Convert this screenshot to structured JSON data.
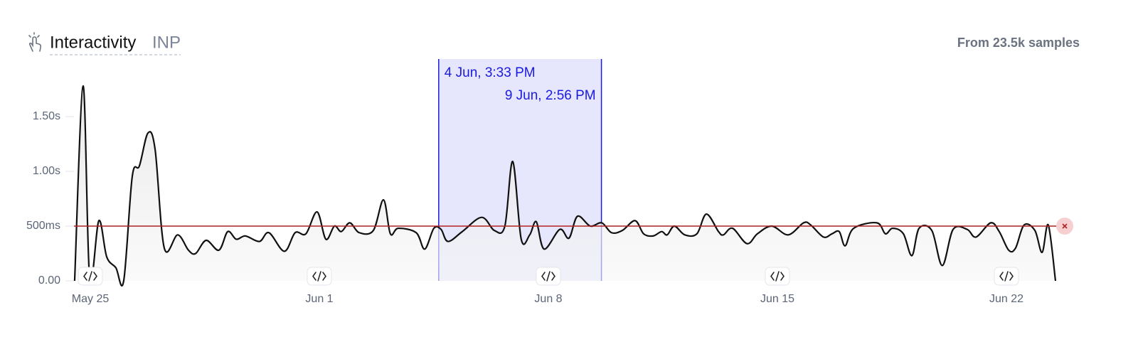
{
  "chart_data": {
    "type": "line",
    "title": "Interactivity",
    "metric": "INP",
    "samples_label": "From 23.5k samples",
    "x": [
      -0.48,
      -0.22,
      -0.02,
      0.26,
      0.5,
      0.78,
      1.02,
      1.28,
      1.5,
      1.76,
      1.98,
      2.26,
      2.67,
      3.0,
      3.22,
      3.54,
      3.93,
      4.2,
      4.46,
      4.74,
      5.17,
      5.46,
      5.93,
      6.26,
      6.59,
      6.93,
      7.2,
      7.46,
      7.67,
      7.93,
      8.22,
      8.65,
      8.96,
      9.17,
      9.41,
      9.96,
      10.22,
      10.5,
      10.72,
      10.93,
      11.37,
      11.96,
      12.35,
      12.67,
      12.91,
      13.17,
      13.43,
      13.63,
      13.87,
      14.35,
      14.63,
      14.89,
      15.28,
      15.63,
      15.93,
      16.26,
      16.65,
      16.91,
      17.2,
      17.46,
      17.63,
      17.85,
      18.17,
      18.54,
      18.83,
      19.2,
      19.35,
      19.63,
      20.07,
      20.39,
      20.83,
      21.33,
      21.8,
      22.02,
      22.41,
      22.67,
      22.89,
      23.07,
      23.33,
      24.04,
      24.3,
      24.52,
      24.85,
      25.11,
      25.33,
      25.72,
      26.04,
      26.37,
      26.8,
      27.07,
      27.52,
      27.78,
      28.07,
      28.28,
      28.54,
      28.87,
      29.09,
      29.28,
      29.5
    ],
    "series": [
      {
        "name": "INP",
        "color": "#111111",
        "values": [
          0,
          1780,
          20,
          550,
          220,
          120,
          0,
          950,
          1050,
          1350,
          1200,
          300,
          420,
          280,
          250,
          370,
          280,
          450,
          380,
          410,
          360,
          440,
          270,
          440,
          430,
          630,
          380,
          500,
          450,
          530,
          440,
          460,
          740,
          430,
          480,
          440,
          290,
          480,
          470,
          360,
          450,
          580,
          460,
          500,
          1090,
          380,
          420,
          540,
          290,
          470,
          390,
          590,
          500,
          530,
          440,
          460,
          550,
          430,
          410,
          450,
          420,
          500,
          420,
          430,
          610,
          450,
          420,
          480,
          340,
          430,
          500,
          420,
          530,
          510,
          400,
          430,
          450,
          320,
          480,
          530,
          430,
          480,
          430,
          230,
          480,
          460,
          140,
          470,
          470,
          400,
          530,
          450,
          280,
          300,
          510,
          460,
          260,
          510,
          0
        ]
      }
    ],
    "xlim": [
      -0.5,
      29.5
    ],
    "xticks": [
      {
        "value": 0,
        "label": "May 25"
      },
      {
        "value": 7,
        "label": "Jun 1"
      },
      {
        "value": 14,
        "label": "Jun 8"
      },
      {
        "value": 21,
        "label": "Jun 15"
      },
      {
        "value": 28,
        "label": "Jun 22"
      }
    ],
    "ylim": [
      0,
      2000
    ],
    "yticks": [
      {
        "value": 0,
        "label": "0.00"
      },
      {
        "value": 500,
        "label": "500ms"
      },
      {
        "value": 1000,
        "label": "1.00s"
      },
      {
        "value": 1500,
        "label": "1.50s"
      }
    ],
    "threshold": 500,
    "threshold_color": "#b22222",
    "selection": {
      "start": 10.648,
      "end": 15.622,
      "start_label": "4 Jun, 3:33 PM",
      "end_label": "9 Jun, 2:56 PM",
      "color": "#1a1ae0"
    }
  }
}
